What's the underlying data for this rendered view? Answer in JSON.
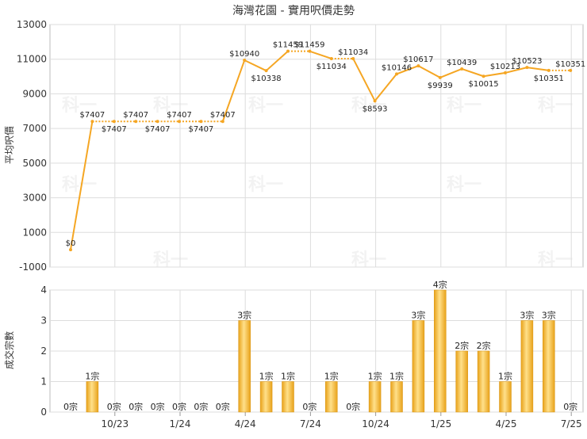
{
  "chart_data": [
    {
      "type": "line",
      "title": "海灣花園 - 實用呎價走勢",
      "ylabel": "平均呎價",
      "ylim": [
        -1000,
        13000
      ],
      "yticks": [
        -1000,
        1000,
        3000,
        5000,
        7000,
        9000,
        11000,
        13000
      ],
      "grid": true,
      "line_color": "#f5a623",
      "x_labels": [
        "10/23",
        "1/24",
        "4/24",
        "7/24",
        "10/24",
        "1/25",
        "4/25",
        "7/25"
      ],
      "series": [
        {
          "values": [
            0,
            7407,
            7407,
            7407,
            7407,
            7407,
            7407,
            7407,
            10940,
            10338,
            11459,
            11459,
            11034,
            11034,
            8593,
            10146,
            10617,
            9939,
            10439,
            10015,
            10213,
            10523,
            10351,
            10351
          ],
          "labels": [
            "$0",
            "$7407",
            "$7407",
            "$7407",
            "$7407",
            "$7407",
            "$7407",
            "$7407",
            "$10940",
            "$10338",
            "$11459",
            "$11459",
            "$11034",
            "$11034",
            "$8593",
            "$10146",
            "$10617",
            "$9939",
            "$10439",
            "$10015",
            "$10213",
            "$10523",
            "$10351",
            "$10351"
          ]
        }
      ]
    },
    {
      "type": "bar",
      "ylabel": "成交宗數",
      "ylim": [
        0,
        4
      ],
      "yticks": [
        0,
        1,
        2,
        3,
        4
      ],
      "grid": true,
      "bar_color": "#f5a623",
      "x_labels": [
        "10/23",
        "1/24",
        "4/24",
        "7/24",
        "10/24",
        "1/25",
        "4/25",
        "7/25"
      ],
      "values": [
        0,
        1,
        0,
        0,
        0,
        0,
        0,
        0,
        3,
        1,
        1,
        0,
        1,
        0,
        1,
        1,
        3,
        4,
        2,
        2,
        1,
        3,
        3,
        0
      ],
      "labels": [
        "0宗",
        "1宗",
        "0宗",
        "0宗",
        "0宗",
        "0宗",
        "0宗",
        "0宗",
        "3宗",
        "1宗",
        "1宗",
        "0宗",
        "1宗",
        "0宗",
        "1宗",
        "1宗",
        "3宗",
        "4宗",
        "2宗",
        "2宗",
        "1宗",
        "3宗",
        "3宗",
        "0宗"
      ]
    }
  ],
  "watermark": "科一"
}
